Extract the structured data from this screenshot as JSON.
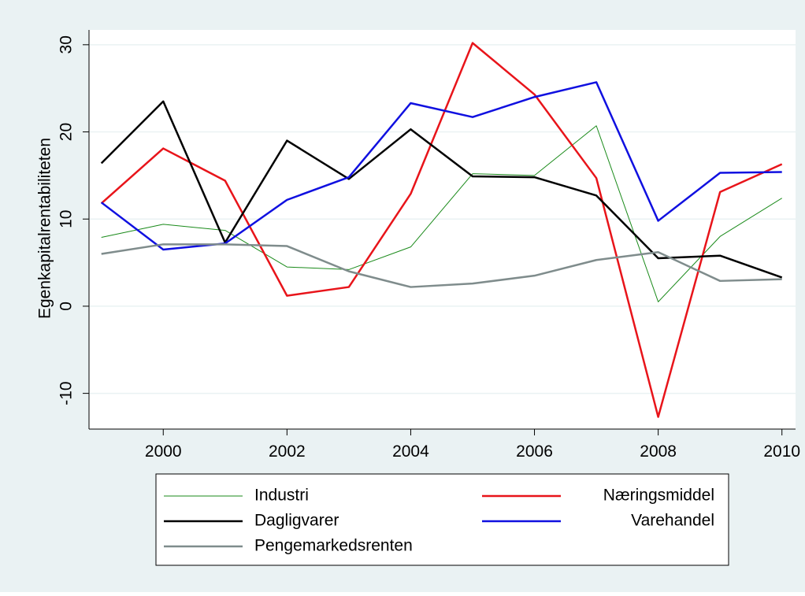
{
  "chart_data": {
    "type": "line",
    "y_label": "Egenkapitalrentabiliteten",
    "x": [
      1999,
      2000,
      2001,
      2002,
      2003,
      2004,
      2005,
      2006,
      2007,
      2008,
      2009,
      2010
    ],
    "series": [
      {
        "name": "Industri",
        "color": "#1a8a1a",
        "values": [
          7.9,
          9.4,
          8.7,
          4.5,
          4.2,
          6.8,
          15.2,
          15.0,
          20.7,
          0.5,
          8.0,
          12.4
        ]
      },
      {
        "name": "Næringsmiddel",
        "color": "#e8141a",
        "values": [
          11.8,
          18.1,
          14.4,
          1.2,
          2.2,
          12.9,
          30.2,
          24.3,
          14.7,
          -12.7,
          13.1,
          16.3
        ]
      },
      {
        "name": "Dagligvarer",
        "color": "#000000",
        "values": [
          16.4,
          23.5,
          7.3,
          19.0,
          14.6,
          20.3,
          14.9,
          14.8,
          12.7,
          5.5,
          5.8,
          3.3
        ]
      },
      {
        "name": "Varehandel",
        "color": "#1010e0",
        "values": [
          11.9,
          6.5,
          7.2,
          12.2,
          14.8,
          23.3,
          21.7,
          24.0,
          25.7,
          9.8,
          15.3,
          15.4
        ]
      },
      {
        "name": "Pengemarkedsrenten",
        "color": "#7f8c8c",
        "values": [
          6.0,
          7.1,
          7.1,
          6.9,
          4.0,
          2.2,
          2.6,
          3.5,
          5.3,
          6.2,
          2.9,
          3.1
        ]
      }
    ],
    "xlim": [
      1998.8,
      2010.22
    ],
    "xticks": [
      2000,
      2002,
      2004,
      2006,
      2008,
      2010
    ],
    "ylim": [
      -14.1,
      31.7
    ],
    "yticks": [
      -10,
      0,
      10,
      20,
      30
    ],
    "grid": true
  }
}
